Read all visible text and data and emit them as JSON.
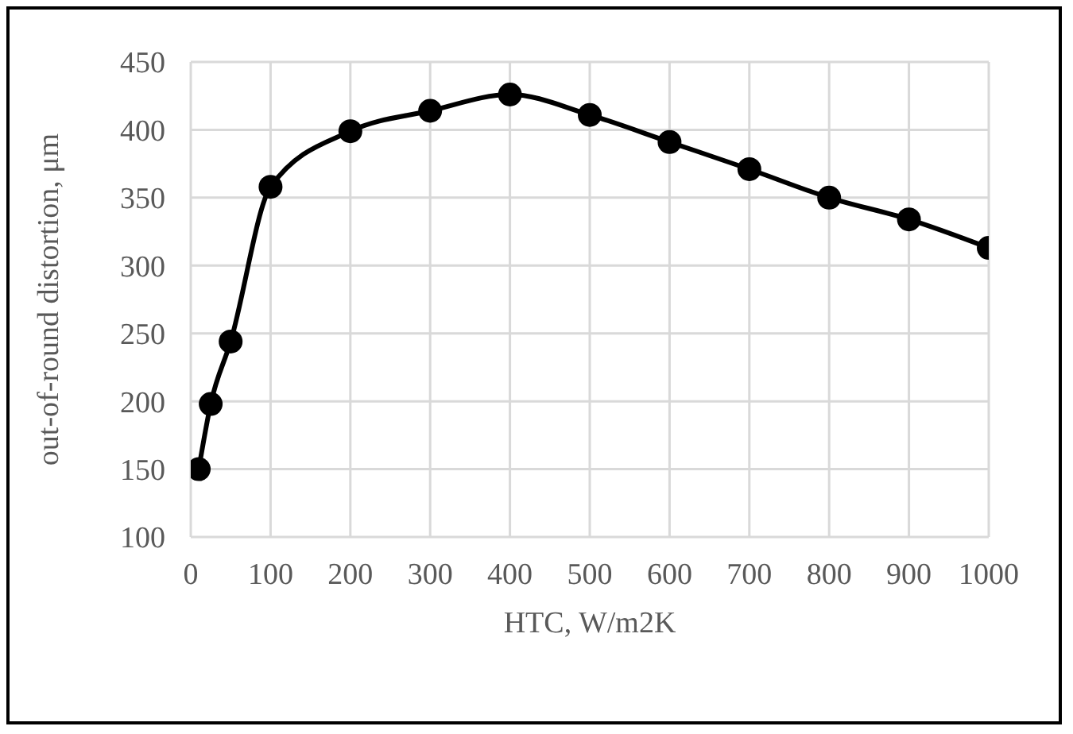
{
  "chart_data": {
    "type": "line",
    "xlabel": "HTC, W/m2K",
    "ylabel": "out-of-round distortion, μm",
    "x": [
      10,
      25,
      50,
      100,
      200,
      300,
      400,
      500,
      600,
      700,
      800,
      900,
      1000
    ],
    "series": [
      {
        "color": "#000000",
        "values": [
          150,
          198,
          244,
          358,
          399,
          414,
          426,
          411,
          391,
          371,
          350,
          334,
          313
        ]
      }
    ],
    "xlim": [
      0,
      1000
    ],
    "xticks": [
      0,
      100,
      200,
      300,
      400,
      500,
      600,
      700,
      800,
      900,
      1000
    ],
    "ylim": [
      100,
      450
    ],
    "yticks": [
      100,
      150,
      200,
      250,
      300,
      350,
      400,
      450
    ],
    "grid": true,
    "marker": "circle",
    "line_style": "solid"
  }
}
